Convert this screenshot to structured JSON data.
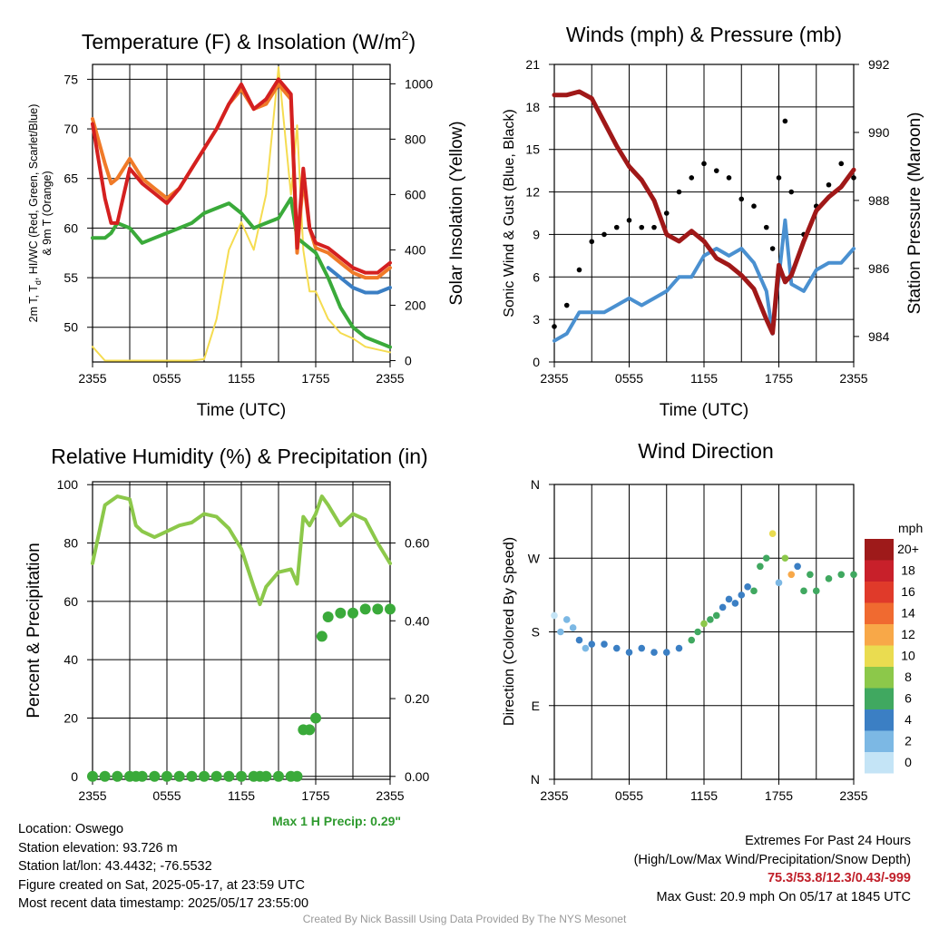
{
  "chart_data": [
    {
      "id": "temperature",
      "type": "line",
      "title": "Temperature (F) & Insolation (W/m",
      "title_superscript": "2",
      "title_close": ")",
      "xlabel": "Time (UTC)",
      "ylabel_line1": "2m T, T",
      "ylabel_sub": "d",
      "ylabel_line1_rest": ", HI/WC (Red, Green, Scarlet/Blue)",
      "ylabel_line2": "& 9m T (Orange)",
      "ylabel_right": "Solar Insolation (Yellow)",
      "x_ticks": [
        "2355",
        "0555",
        "1155",
        "1755",
        "2355"
      ],
      "ylim": [
        46.5,
        76.5
      ],
      "y_ticks": [
        "50",
        "55",
        "60",
        "65",
        "70",
        "75"
      ],
      "y_right_lim": [
        -5,
        1070
      ],
      "y_right_ticks": [
        "0",
        "200",
        "400",
        "600",
        "800",
        "1000"
      ],
      "grid": true,
      "x_hours": [
        0,
        1,
        1.5,
        2,
        3,
        4,
        5,
        6,
        7,
        8,
        9,
        10,
        11,
        12,
        13,
        14,
        15,
        16,
        16.5,
        17,
        17.5,
        18,
        19,
        20,
        21,
        22,
        23,
        24
      ],
      "series": [
        {
          "role": "2m temperature",
          "color": "#d42020",
          "values": [
            70.5,
            63,
            60.5,
            60.5,
            66,
            64.5,
            63.5,
            62.5,
            64,
            66,
            68,
            70,
            72.5,
            74.5,
            72,
            73,
            75,
            73.5,
            58,
            66,
            60,
            58.5,
            58,
            57,
            56,
            55.5,
            55.5,
            56.5
          ]
        },
        {
          "role": "9m temperature",
          "color": "#f07a28",
          "values": [
            71,
            66.5,
            64.5,
            65,
            67,
            65,
            64,
            63,
            64,
            66,
            68,
            70,
            72.5,
            74,
            72,
            72.5,
            74.5,
            73,
            57.5,
            65,
            60,
            58,
            57.5,
            56.5,
            55.5,
            55,
            55,
            56
          ]
        },
        {
          "role": "dew point",
          "color": "#3aaa3a",
          "values": [
            59,
            59,
            59.5,
            60.5,
            60,
            58.5,
            59,
            59.5,
            60,
            60.5,
            61.5,
            62,
            62.5,
            61.5,
            60,
            60.5,
            61,
            63,
            59,
            58.5,
            58,
            57.5,
            55,
            52,
            50,
            49,
            48.5,
            48
          ]
        },
        {
          "role": "heat index / wind chill",
          "color": "#3b7fc4",
          "values": [
            null,
            null,
            null,
            null,
            null,
            null,
            null,
            null,
            null,
            null,
            null,
            null,
            null,
            null,
            null,
            null,
            null,
            null,
            null,
            null,
            null,
            null,
            56,
            55,
            54,
            53.5,
            53.5,
            54
          ]
        },
        {
          "role": "solar insolation",
          "color": "#f5dc50",
          "axis": "right",
          "values": [
            50,
            0,
            0,
            0,
            0,
            0,
            0,
            0,
            0,
            0,
            5,
            150,
            400,
            500,
            400,
            600,
            1060,
            600,
            850,
            400,
            250,
            250,
            150,
            100,
            80,
            50,
            40,
            30
          ]
        }
      ]
    },
    {
      "id": "winds",
      "type": "line",
      "title": "Winds (mph) & Pressure (mb)",
      "xlabel": "Time (UTC)",
      "ylabel": "Sonic Wind & Gust (Blue, Black)",
      "ylabel_right": "Station Pressure (Maroon)",
      "x_ticks": [
        "2355",
        "0555",
        "1155",
        "1755",
        "2355"
      ],
      "ylim": [
        0,
        21
      ],
      "y_ticks": [
        "0",
        "3",
        "6",
        "9",
        "12",
        "15",
        "18",
        "21"
      ],
      "y_right_lim": [
        983.25,
        992
      ],
      "y_right_ticks": [
        "984",
        "986",
        "988",
        "990",
        "992"
      ],
      "grid": true,
      "x_hours": [
        0,
        1,
        2,
        3,
        4,
        5,
        6,
        7,
        8,
        9,
        10,
        11,
        12,
        13,
        14,
        15,
        16,
        17,
        17.5,
        18,
        18.5,
        19,
        20,
        21,
        22,
        23,
        24
      ],
      "series": [
        {
          "role": "sonic wind",
          "color": "#4a90d0",
          "values": [
            1.5,
            2,
            3.5,
            3.5,
            3.5,
            4,
            4.5,
            4,
            4.5,
            5,
            6,
            6,
            7.5,
            8,
            7.5,
            8,
            7,
            5,
            2,
            6,
            10,
            5.5,
            5,
            6.5,
            7,
            7,
            8
          ]
        },
        {
          "role": "station pressure",
          "color": "#a01818",
          "axis": "right",
          "values": [
            991.1,
            991.1,
            991.2,
            991.0,
            990.3,
            989.6,
            989.0,
            988.6,
            988.0,
            987.0,
            986.8,
            987.1,
            986.8,
            986.3,
            986.1,
            985.8,
            985.4,
            984.5,
            984.1,
            986.1,
            985.6,
            985.8,
            986.8,
            987.7,
            988.1,
            988.4,
            988.9
          ]
        },
        {
          "role": "gust",
          "color": "#000000",
          "style": "markers",
          "values": [
            2.5,
            4,
            6.5,
            8.5,
            9,
            9.5,
            10,
            9.5,
            9.5,
            10.5,
            12,
            13,
            14,
            13.5,
            13,
            11.5,
            11,
            9.5,
            8,
            13,
            17,
            12,
            9,
            11,
            12.5,
            14,
            13
          ]
        }
      ]
    },
    {
      "id": "humidity",
      "type": "line",
      "title": "Relative Humidity (%) & Precipitation (in)",
      "ylabel": "Percent & Precipitation",
      "x_ticks": [
        "2355",
        "0555",
        "1155",
        "1755",
        "2355"
      ],
      "ylim": [
        -1,
        101
      ],
      "y_ticks": [
        "0",
        "20",
        "40",
        "60",
        "80",
        "100"
      ],
      "y_right_lim": [
        -0.0075,
        0.7575
      ],
      "y_right_ticks": [
        "0.00",
        "0.20",
        "0.40",
        "0.60"
      ],
      "grid": true,
      "x_hours": [
        0,
        1,
        2,
        3,
        3.5,
        4,
        5,
        6,
        7,
        8,
        9,
        10,
        11,
        12,
        13,
        13.5,
        14,
        15,
        16,
        16.5,
        17,
        17.5,
        18,
        18.5,
        19,
        20,
        21,
        22,
        23,
        24
      ],
      "series": [
        {
          "role": "relative humidity",
          "color": "#8cc84a",
          "values": [
            73,
            93,
            96,
            95,
            86,
            84,
            82,
            84,
            86,
            87,
            90,
            89,
            85,
            78,
            65,
            59,
            65,
            70,
            71,
            66,
            89,
            86,
            90,
            96,
            93,
            86,
            90,
            88,
            80,
            73
          ]
        },
        {
          "role": "precipitation",
          "color": "#3aaa3a",
          "axis": "right",
          "style": "markers",
          "values": [
            0,
            0,
            0,
            0,
            0,
            0,
            0,
            0,
            0,
            0,
            0,
            0,
            0,
            0,
            0,
            0,
            0,
            0,
            0,
            0,
            0.12,
            0.12,
            0.15,
            0.36,
            0.41,
            0.42,
            0.42,
            0.43,
            0.43,
            0.43
          ]
        }
      ],
      "max_precip_label": "Max 1 H Precip: 0.29\""
    },
    {
      "id": "wind-direction",
      "type": "scatter",
      "title": "Wind Direction",
      "ylabel": "Direction (Colored By Speed)",
      "x_ticks": [
        "2355",
        "0555",
        "1155",
        "1755",
        "2355"
      ],
      "ylim": [
        0,
        360
      ],
      "y_ticks": [
        "N",
        "E",
        "S",
        "W",
        "N"
      ],
      "grid": true,
      "x_hours": [
        0,
        0.5,
        1,
        1.5,
        2,
        2.5,
        3,
        4,
        5,
        6,
        7,
        8,
        9,
        10,
        11,
        11.5,
        12,
        12.5,
        13,
        13.5,
        14,
        14.5,
        15,
        15.5,
        16,
        16.5,
        17,
        17.5,
        18,
        18.5,
        19,
        19.5,
        20,
        20.5,
        21,
        22,
        23,
        24
      ],
      "values": [
        200,
        180,
        195,
        185,
        170,
        160,
        165,
        165,
        160,
        155,
        160,
        155,
        155,
        160,
        170,
        180,
        190,
        195,
        200,
        210,
        220,
        215,
        225,
        235,
        230,
        260,
        270,
        300,
        240,
        270,
        250,
        260,
        230,
        250,
        230,
        245,
        250,
        250
      ],
      "speeds": [
        1,
        2,
        3,
        3,
        4,
        3,
        4,
        4,
        4,
        4,
        4,
        4,
        4,
        5,
        6,
        7,
        8,
        7,
        6,
        5,
        4,
        5,
        4,
        4,
        6,
        6,
        6,
        10,
        2,
        8,
        12,
        4,
        6,
        7,
        6,
        6,
        6,
        6
      ],
      "legend_unit": "mph",
      "legend": [
        {
          "label": "20+",
          "color": "#9e1a1a"
        },
        {
          "label": "18",
          "color": "#c8202a"
        },
        {
          "label": "16",
          "color": "#e03a2a"
        },
        {
          "label": "14",
          "color": "#f06a30"
        },
        {
          "label": "12",
          "color": "#f8a848"
        },
        {
          "label": "10",
          "color": "#eadc50"
        },
        {
          "label": "8",
          "color": "#8cc84a"
        },
        {
          "label": "6",
          "color": "#40a860"
        },
        {
          "label": "4",
          "color": "#3b7fc4"
        },
        {
          "label": "2",
          "color": "#7cb8e4"
        },
        {
          "label": "0",
          "color": "#c4e4f6"
        }
      ]
    }
  ],
  "station_info": {
    "location": "Location: Oswego",
    "elevation": "Station elevation: 93.726 m",
    "latlon": "Station lat/lon: 43.4432; -76.5532",
    "created": "Figure created on Sat, 2025-05-17, at 23:59 UTC",
    "recent": "Most recent data timestamp: 2025/05/17 23:55:00"
  },
  "extremes": {
    "title": "Extremes For Past 24 Hours",
    "subtitle": "(High/Low/Max Wind/Precipitation/Snow Depth)",
    "values": "75.3/53.8/12.3/0.43/-999",
    "max_gust": "Max Gust: 20.9 mph On 05/17 at 1845 UTC"
  },
  "credit": "Created By Nick Bassill Using Data Provided By The NYS Mesonet"
}
